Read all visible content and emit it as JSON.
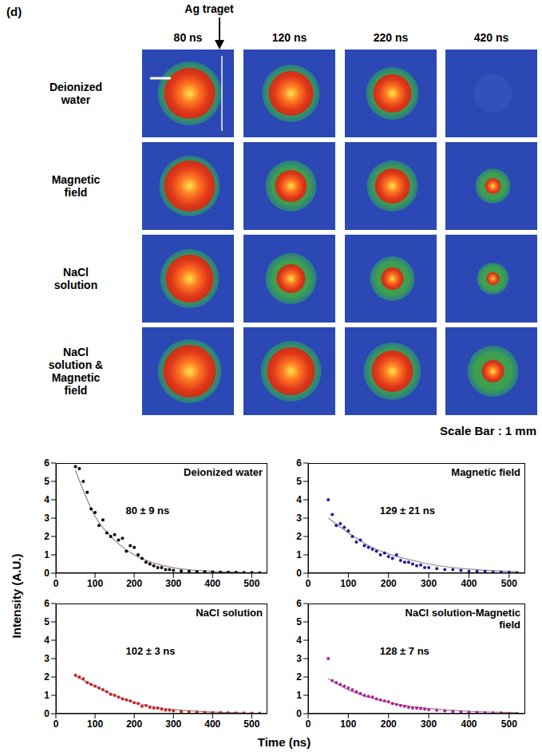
{
  "images": {
    "panel_label": "(d)",
    "annotation": "Ag traget",
    "columns": [
      "80 ns",
      "120 ns",
      "220 ns",
      "420 ns"
    ],
    "rows": [
      "Deionized water",
      "Magnetic field",
      "NaCl solution",
      "NaCl solution & Magnetic field"
    ],
    "scale_bar": "Scale Bar : 1 mm"
  },
  "xlabel": "Time (ns)",
  "ylabel": "Intensity (A.U.)",
  "chart_data": [
    {
      "type": "scatter",
      "title": "Deionized water",
      "annotation": "80 ± 9 ns",
      "xlim": [
        0,
        540
      ],
      "xticks": [
        0,
        100,
        200,
        300,
        400,
        500
      ],
      "ylim": [
        0,
        6
      ],
      "yticks": [
        0,
        1,
        2,
        3,
        4,
        5,
        6
      ],
      "series": [
        {
          "type": "scatter",
          "color": "#000000",
          "marker": "circle",
          "x": [
            50,
            60,
            70,
            80,
            90,
            100,
            110,
            120,
            130,
            140,
            150,
            160,
            170,
            180,
            190,
            200,
            210,
            220,
            230,
            240,
            250,
            260,
            270,
            280,
            290,
            300,
            320,
            340,
            360,
            380,
            400,
            420,
            440,
            460,
            480,
            500,
            520
          ],
          "values": [
            5.8,
            5.7,
            5.0,
            4.4,
            3.5,
            3.3,
            2.6,
            2.9,
            2.2,
            2.0,
            2.1,
            1.8,
            1.9,
            1.2,
            1.5,
            1.4,
            1.0,
            0.8,
            0.6,
            0.5,
            0.4,
            0.3,
            0.3,
            0.2,
            0.2,
            0.15,
            0.12,
            0.1,
            0.08,
            0.08,
            0.06,
            0.05,
            0.05,
            0.04,
            0.03,
            0.03,
            0.02
          ]
        },
        {
          "type": "line",
          "color": "#a08080",
          "line_style": "solid",
          "x": [
            50,
            100,
            150,
            200,
            250,
            300,
            400,
            500,
            520
          ],
          "values": [
            5.6,
            3.1,
            1.8,
            1.0,
            0.55,
            0.3,
            0.1,
            0.03,
            0.02
          ]
        }
      ]
    },
    {
      "type": "scatter",
      "title": "Magnetic field",
      "annotation": "129 ± 21 ns",
      "xlim": [
        0,
        540
      ],
      "xticks": [
        0,
        100,
        200,
        300,
        400,
        500
      ],
      "ylim": [
        0,
        6
      ],
      "yticks": [
        0,
        1,
        2,
        3,
        4,
        5,
        6
      ],
      "series": [
        {
          "type": "scatter",
          "color": "#1c1ca0",
          "marker": "circle",
          "x": [
            50,
            60,
            70,
            80,
            90,
            100,
            110,
            120,
            130,
            140,
            150,
            160,
            170,
            180,
            190,
            200,
            210,
            220,
            230,
            240,
            250,
            260,
            270,
            280,
            290,
            300,
            320,
            340,
            360,
            380,
            400,
            420,
            440,
            460,
            480,
            500,
            520
          ],
          "values": [
            4.0,
            3.2,
            2.6,
            2.7,
            2.5,
            2.3,
            2.0,
            1.7,
            1.8,
            1.5,
            1.4,
            1.3,
            1.2,
            1.0,
            1.1,
            0.9,
            0.8,
            1.0,
            0.7,
            0.6,
            0.6,
            0.5,
            0.4,
            0.45,
            0.3,
            0.3,
            0.25,
            0.2,
            0.2,
            0.15,
            0.1,
            0.1,
            0.1,
            0.05,
            0.05,
            0.05,
            0.02
          ]
        },
        {
          "type": "line",
          "color": "#a08080",
          "line_style": "solid",
          "x": [
            50,
            100,
            150,
            200,
            250,
            300,
            400,
            500,
            520
          ],
          "values": [
            3.0,
            2.2,
            1.5,
            1.05,
            0.75,
            0.5,
            0.22,
            0.1,
            0.08
          ]
        }
      ]
    },
    {
      "type": "scatter",
      "title": "NaCl solution",
      "annotation": "102 ± 3 ns",
      "xlim": [
        0,
        540
      ],
      "xticks": [
        0,
        100,
        200,
        300,
        400,
        500
      ],
      "ylim": [
        0,
        6
      ],
      "yticks": [
        0,
        1,
        2,
        3,
        4,
        5,
        6
      ],
      "series": [
        {
          "type": "scatter",
          "color": "#c0282a",
          "marker": "circle",
          "x": [
            50,
            60,
            70,
            80,
            90,
            100,
            110,
            120,
            130,
            140,
            150,
            160,
            170,
            180,
            190,
            200,
            210,
            220,
            230,
            240,
            250,
            260,
            270,
            280,
            290,
            300,
            320,
            340,
            360,
            380,
            400,
            420,
            440,
            460,
            480,
            500,
            520
          ],
          "values": [
            2.1,
            2.0,
            1.9,
            1.7,
            1.6,
            1.5,
            1.4,
            1.3,
            1.2,
            1.05,
            1.0,
            0.9,
            0.8,
            0.75,
            0.7,
            0.6,
            0.55,
            0.4,
            0.45,
            0.35,
            0.3,
            0.3,
            0.25,
            0.2,
            0.2,
            0.15,
            0.12,
            0.1,
            0.08,
            0.06,
            0.05,
            0.05,
            0.04,
            0.03,
            0.03,
            0.02,
            0.02
          ]
        },
        {
          "type": "line",
          "color": "#a08080",
          "line_style": "solid",
          "x": [
            50,
            100,
            150,
            200,
            250,
            300,
            400,
            500,
            520
          ],
          "values": [
            2.05,
            1.5,
            1.0,
            0.62,
            0.38,
            0.23,
            0.09,
            0.03,
            0.02
          ]
        }
      ]
    },
    {
      "type": "scatter",
      "title": "NaCl solution-Magnetic field",
      "annotation": "128 ± 7 ns",
      "xlim": [
        0,
        540
      ],
      "xticks": [
        0,
        100,
        200,
        300,
        400,
        500
      ],
      "ylim": [
        0,
        6
      ],
      "yticks": [
        0,
        1,
        2,
        3,
        4,
        5,
        6
      ],
      "series": [
        {
          "type": "scatter",
          "color": "#b0209a",
          "marker": "circle",
          "x": [
            50,
            60,
            70,
            80,
            90,
            100,
            110,
            120,
            130,
            140,
            150,
            160,
            170,
            180,
            190,
            200,
            210,
            220,
            230,
            240,
            250,
            260,
            270,
            280,
            290,
            300,
            320,
            340,
            360,
            380,
            400,
            420,
            440,
            460,
            480,
            500,
            520
          ],
          "values": [
            3.0,
            1.8,
            1.7,
            1.6,
            1.5,
            1.4,
            1.3,
            1.2,
            1.1,
            1.0,
            0.95,
            0.9,
            0.8,
            0.75,
            0.7,
            0.65,
            0.55,
            0.5,
            0.45,
            0.4,
            0.35,
            0.3,
            0.3,
            0.28,
            0.25,
            0.22,
            0.18,
            0.15,
            0.12,
            0.1,
            0.08,
            0.07,
            0.05,
            0.04,
            0.03,
            0.02,
            0.01
          ]
        },
        {
          "type": "line",
          "color": "#a08080",
          "line_style": "solid",
          "x": [
            50,
            100,
            150,
            200,
            250,
            300,
            400,
            500,
            520
          ],
          "values": [
            1.9,
            1.3,
            0.9,
            0.62,
            0.42,
            0.29,
            0.13,
            0.06,
            0.05
          ]
        }
      ]
    }
  ]
}
